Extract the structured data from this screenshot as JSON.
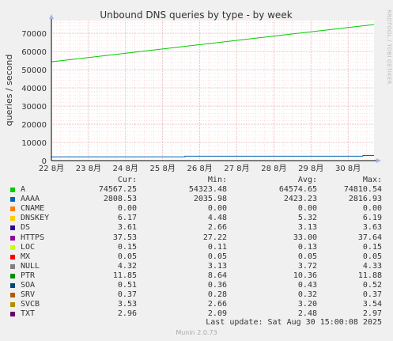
{
  "side_label": "RRDTOOL / TOBI OETIKER",
  "last_update": "Last update: Sat Aug 30 15:00:08 2025",
  "munin_version": "Munin 2.0.73",
  "legend_headers": {
    "cur": "Cur:",
    "min": "Min:",
    "avg": "Avg:",
    "max": "Max:"
  },
  "legend": [
    {
      "name": "A",
      "color": "#00cc00",
      "cur": "74567.25",
      "min": "54323.48",
      "avg": "64574.65",
      "max": "74810.54"
    },
    {
      "name": "AAAA",
      "color": "#0066b3",
      "cur": "2808.53",
      "min": "2035.98",
      "avg": "2423.23",
      "max": "2816.93"
    },
    {
      "name": "CNAME",
      "color": "#ff8000",
      "cur": "0.00",
      "min": "0.00",
      "avg": "0.00",
      "max": "0.00"
    },
    {
      "name": "DNSKEY",
      "color": "#ffcc00",
      "cur": "6.17",
      "min": "4.48",
      "avg": "5.32",
      "max": "6.19"
    },
    {
      "name": "DS",
      "color": "#330099",
      "cur": "3.61",
      "min": "2.66",
      "avg": "3.13",
      "max": "3.63"
    },
    {
      "name": "HTTPS",
      "color": "#990099",
      "cur": "37.53",
      "min": "27.22",
      "avg": "33.00",
      "max": "37.64"
    },
    {
      "name": "LOC",
      "color": "#ccff00",
      "cur": "0.15",
      "min": "0.11",
      "avg": "0.13",
      "max": "0.15"
    },
    {
      "name": "MX",
      "color": "#ff0000",
      "cur": "0.05",
      "min": "0.05",
      "avg": "0.05",
      "max": "0.05"
    },
    {
      "name": "NULL",
      "color": "#808080",
      "cur": "4.32",
      "min": "3.13",
      "avg": "3.72",
      "max": "4.33"
    },
    {
      "name": "PTR",
      "color": "#008f00",
      "cur": "11.85",
      "min": "8.64",
      "avg": "10.36",
      "max": "11.88"
    },
    {
      "name": "SOA",
      "color": "#00487d",
      "cur": "0.51",
      "min": "0.36",
      "avg": "0.43",
      "max": "0.52"
    },
    {
      "name": "SRV",
      "color": "#b35a00",
      "cur": "0.37",
      "min": "0.28",
      "avg": "0.32",
      "max": "0.37"
    },
    {
      "name": "SVCB",
      "color": "#b38f00",
      "cur": "3.53",
      "min": "2.66",
      "avg": "3.20",
      "max": "3.54"
    },
    {
      "name": "TXT",
      "color": "#6b006b",
      "cur": "2.96",
      "min": "2.09",
      "avg": "2.48",
      "max": "2.97"
    }
  ],
  "chart_data": {
    "type": "line",
    "title": "Unbound DNS queries by type - by week",
    "ylabel": "queries / second",
    "xlabel": "",
    "ylim": [
      0,
      77000
    ],
    "grid": true,
    "x_ticks": [
      "22 8月",
      "23 8月",
      "24 8月",
      "25 8月",
      "26 8月",
      "27 8月",
      "28 8月",
      "29 8月",
      "30 8月"
    ],
    "y_ticks": [
      "0",
      "10000",
      "20000",
      "30000",
      "40000",
      "50000",
      "60000",
      "70000"
    ],
    "x_range": [
      0,
      8.7
    ],
    "series": [
      {
        "name": "A",
        "color": "#00cc00",
        "x": [
          0,
          8.7
        ],
        "y": [
          54323,
          74810
        ]
      },
      {
        "name": "AAAA",
        "color": "#0066b3",
        "x": [
          0,
          3.6,
          3.6,
          8.4,
          8.4,
          8.7
        ],
        "y": [
          2035,
          2035,
          2420,
          2420,
          2810,
          2810
        ]
      }
    ]
  }
}
